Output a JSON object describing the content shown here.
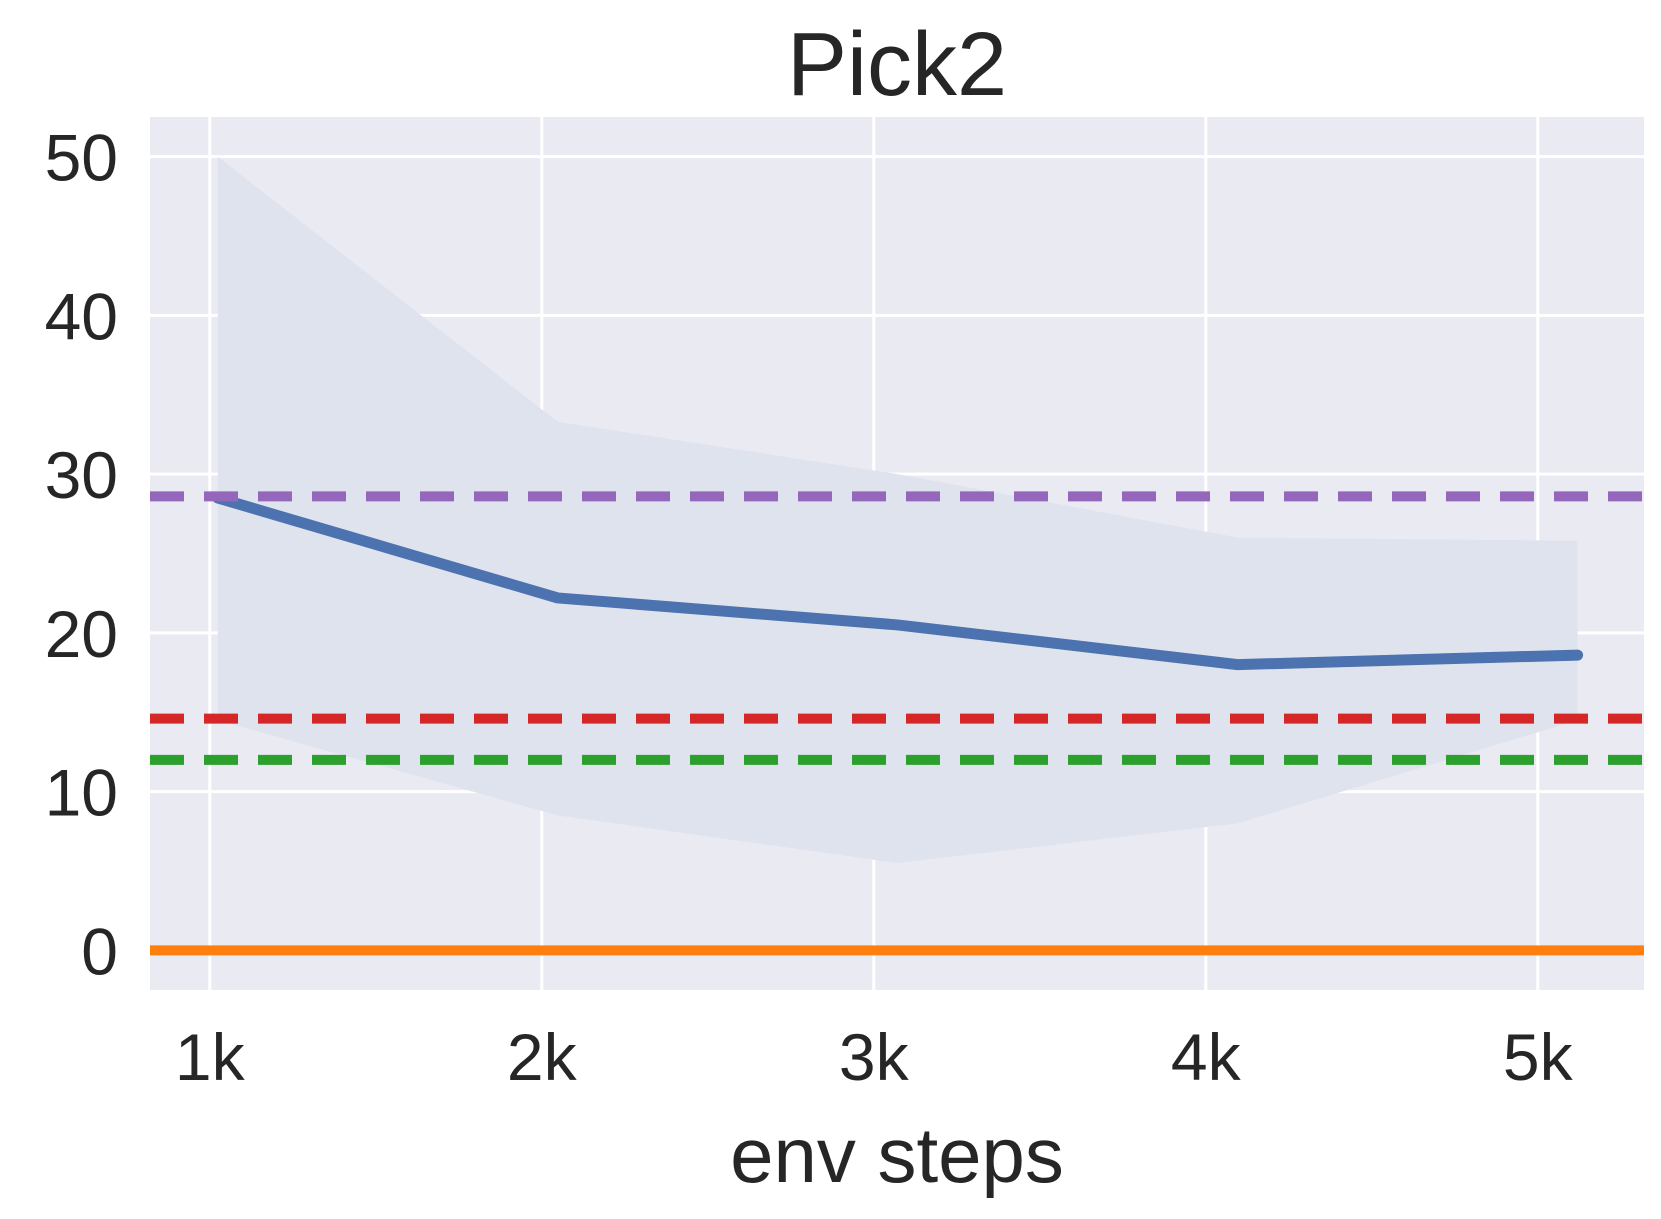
{
  "chart_data": {
    "type": "line",
    "title": "Pick2",
    "xlabel": "env steps",
    "ylabel": "",
    "x_ticks": [
      {
        "value": 1000,
        "label": "1k"
      },
      {
        "value": 2000,
        "label": "2k"
      },
      {
        "value": 3000,
        "label": "3k"
      },
      {
        "value": 4000,
        "label": "4k"
      },
      {
        "value": 5000,
        "label": "5k"
      }
    ],
    "y_ticks": [
      {
        "value": 0,
        "label": "0"
      },
      {
        "value": 10,
        "label": "10"
      },
      {
        "value": 20,
        "label": "20"
      },
      {
        "value": 30,
        "label": "30"
      },
      {
        "value": 40,
        "label": "40"
      },
      {
        "value": 50,
        "label": "50"
      }
    ],
    "xlim": [
      820,
      5320
    ],
    "ylim": [
      -2.5,
      52.5
    ],
    "grid": true,
    "background_color": "#eaeaf2",
    "grid_color": "#ffffff",
    "series": [
      {
        "x": [
          1024,
          2048,
          3072,
          4096,
          5120
        ],
        "values": [
          28.5,
          22.2,
          20.5,
          18.0,
          18.6
        ],
        "lower": [
          14.5,
          8.5,
          5.5,
          8.0,
          14.5
        ],
        "upper": [
          50.0,
          33.3,
          30.0,
          26.0,
          25.8
        ],
        "color": "#4c72b0",
        "band_color": "#dfe3ee",
        "style": "solid"
      },
      {
        "constant": 0,
        "color": "#ff7f0e",
        "style": "solid"
      },
      {
        "constant": 28.6,
        "color": "#9467bd",
        "style": "dashed"
      },
      {
        "constant": 14.6,
        "color": "#d62728",
        "style": "dashed"
      },
      {
        "constant": 12.0,
        "color": "#2ca02c",
        "style": "dashed"
      }
    ]
  }
}
